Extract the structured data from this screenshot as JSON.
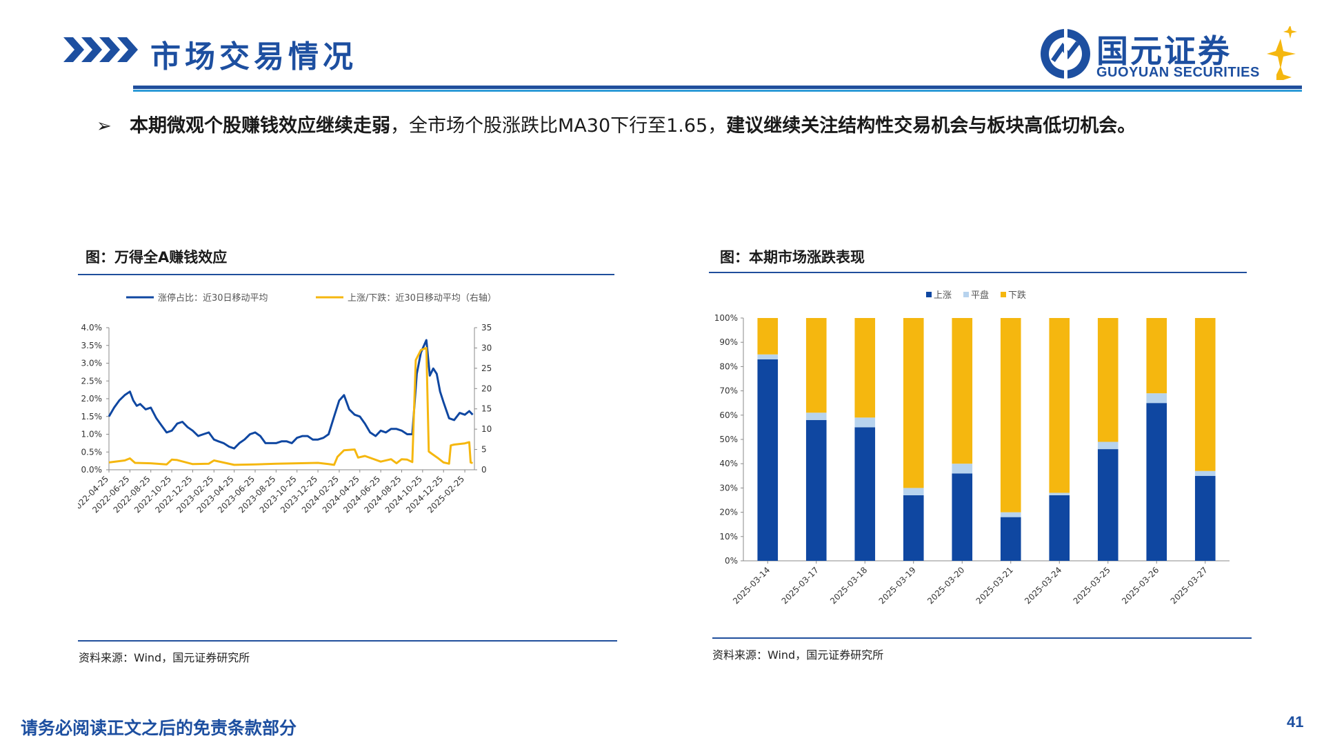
{
  "header": {
    "title": "市场交易情况",
    "logo_cn": "国元证券",
    "logo_en": "GUOYUAN SECURITIES"
  },
  "bullet": {
    "bold_1": "本期微观个股赚钱效应继续走弱",
    "normal": "，全市场个股涨跌比MA30下行至1.65，",
    "bold_2": "建议继续关注结构性交易机会与板块高低切机会。"
  },
  "left_figure": {
    "title": "图：万得全A赚钱效应",
    "source": "资料来源：Wind，国元证券研究所"
  },
  "right_figure": {
    "title": "图：本期市场涨跌表现",
    "source": "资料来源：Wind，国元证券研究所"
  },
  "footer": {
    "note": "请务必阅读正文之后的免责条款部分",
    "page": "41"
  },
  "colors": {
    "brand_blue": "#1d4fa0",
    "series_blue": "#0f47a1",
    "series_gold": "#f5b70f",
    "flat_light_blue": "#b7d3ee"
  },
  "chart_data": [
    {
      "type": "line",
      "x_tick_labels": [
        "2022-04-25",
        "2022-06-25",
        "2022-08-25",
        "2022-10-25",
        "2022-12-25",
        "2023-02-25",
        "2023-04-25",
        "2023-06-25",
        "2023-08-25",
        "2023-10-25",
        "2023-12-25",
        "2024-02-25",
        "2024-04-25",
        "2024-06-25",
        "2024-08-25",
        "2024-10-25",
        "2024-12-25",
        "2025-02-25"
      ],
      "y_left_ticks": [
        "0.0%",
        "0.5%",
        "1.0%",
        "1.5%",
        "2.0%",
        "2.5%",
        "3.0%",
        "3.5%",
        "4.0%"
      ],
      "y_left_lim": [
        0,
        4.0
      ],
      "y_right_ticks": [
        "0",
        "5",
        "10",
        "15",
        "20",
        "25",
        "30",
        "35"
      ],
      "y_right_lim": [
        0,
        35
      ],
      "legend_position": "top",
      "series": [
        {
          "name": "涨停占比：近30日移动平均",
          "axis": "left",
          "color": "#0f47a1",
          "x": [
            "2022-04-25",
            "2022-05-10",
            "2022-05-25",
            "2022-06-10",
            "2022-06-25",
            "2022-07-05",
            "2022-07-15",
            "2022-07-25",
            "2022-08-10",
            "2022-08-25",
            "2022-09-10",
            "2022-09-25",
            "2022-10-10",
            "2022-10-25",
            "2022-11-10",
            "2022-11-25",
            "2022-12-10",
            "2022-12-25",
            "2023-01-10",
            "2023-01-25",
            "2023-02-10",
            "2023-02-25",
            "2023-03-10",
            "2023-03-25",
            "2023-04-10",
            "2023-04-25",
            "2023-05-10",
            "2023-05-25",
            "2023-06-10",
            "2023-06-25",
            "2023-07-10",
            "2023-07-25",
            "2023-08-10",
            "2023-08-25",
            "2023-09-10",
            "2023-09-25",
            "2023-10-10",
            "2023-10-25",
            "2023-11-10",
            "2023-11-25",
            "2023-12-10",
            "2023-12-25",
            "2024-01-10",
            "2024-01-25",
            "2024-02-10",
            "2024-02-25",
            "2024-03-10",
            "2024-03-25",
            "2024-04-10",
            "2024-04-25",
            "2024-05-10",
            "2024-05-25",
            "2024-06-10",
            "2024-06-25",
            "2024-07-10",
            "2024-07-25",
            "2024-08-10",
            "2024-08-25",
            "2024-09-10",
            "2024-09-25",
            "2024-10-08",
            "2024-10-20",
            "2024-11-05",
            "2024-11-15",
            "2024-11-25",
            "2024-12-05",
            "2024-12-15",
            "2024-12-25",
            "2025-01-10",
            "2025-01-25",
            "2025-02-10",
            "2025-02-25",
            "2025-03-10",
            "2025-03-20"
          ],
          "values": [
            1.5,
            1.75,
            1.95,
            2.1,
            2.2,
            1.95,
            1.8,
            1.85,
            1.7,
            1.75,
            1.45,
            1.25,
            1.05,
            1.1,
            1.3,
            1.35,
            1.2,
            1.1,
            0.95,
            1.0,
            1.05,
            0.85,
            0.8,
            0.75,
            0.65,
            0.6,
            0.75,
            0.85,
            1.0,
            1.05,
            0.95,
            0.75,
            0.75,
            0.75,
            0.8,
            0.8,
            0.75,
            0.9,
            0.95,
            0.95,
            0.85,
            0.85,
            0.9,
            1.0,
            1.5,
            1.95,
            2.1,
            1.7,
            1.55,
            1.5,
            1.3,
            1.05,
            0.95,
            1.1,
            1.05,
            1.15,
            1.15,
            1.1,
            1.0,
            1.0,
            2.7,
            3.3,
            3.65,
            2.65,
            2.85,
            2.7,
            2.2,
            1.9,
            1.45,
            1.4,
            1.6,
            1.55,
            1.65,
            1.55
          ]
        },
        {
          "name": "上涨/下跌：近30日移动平均（右轴）",
          "axis": "right",
          "color": "#f5b70f",
          "x": [
            "2022-04-25",
            "2022-06-10",
            "2022-06-25",
            "2022-07-10",
            "2022-08-25",
            "2022-10-10",
            "2022-10-25",
            "2022-11-10",
            "2022-12-25",
            "2023-02-10",
            "2023-02-25",
            "2023-04-25",
            "2023-06-25",
            "2023-08-25",
            "2023-10-25",
            "2023-12-25",
            "2024-01-25",
            "2024-02-10",
            "2024-02-20",
            "2024-03-10",
            "2024-04-10",
            "2024-04-20",
            "2024-05-10",
            "2024-06-25",
            "2024-07-25",
            "2024-08-10",
            "2024-08-25",
            "2024-09-10",
            "2024-09-25",
            "2024-10-05",
            "2024-10-20",
            "2024-11-05",
            "2024-11-12",
            "2024-11-20",
            "2024-12-10",
            "2024-12-25",
            "2025-01-10",
            "2025-01-15",
            "2025-01-25",
            "2025-02-25",
            "2025-03-10",
            "2025-03-14",
            "2025-03-20"
          ],
          "values": [
            1.8,
            2.3,
            2.8,
            1.7,
            1.6,
            1.3,
            2.5,
            2.4,
            1.4,
            1.5,
            2.3,
            1.2,
            1.3,
            1.5,
            1.6,
            1.7,
            1.4,
            1.2,
            3.2,
            4.8,
            5.0,
            3.0,
            3.4,
            2.0,
            2.6,
            1.6,
            2.6,
            2.5,
            1.9,
            27.0,
            29.5,
            30.0,
            4.5,
            4.0,
            2.8,
            1.8,
            1.5,
            6.0,
            6.2,
            6.5,
            6.8,
            1.8,
            1.65
          ]
        }
      ]
    },
    {
      "type": "bar",
      "stacked": true,
      "categories": [
        "2025-03-14",
        "2025-03-17",
        "2025-03-18",
        "2025-03-19",
        "2025-03-20",
        "2025-03-21",
        "2025-03-24",
        "2025-03-25",
        "2025-03-26",
        "2025-03-27"
      ],
      "y_ticks": [
        "0%",
        "10%",
        "20%",
        "30%",
        "40%",
        "50%",
        "60%",
        "70%",
        "80%",
        "90%",
        "100%"
      ],
      "ylim": [
        0,
        100
      ],
      "legend_position": "top",
      "series": [
        {
          "name": "上涨",
          "color": "#0f47a1",
          "values": [
            83,
            58,
            55,
            27,
            36,
            18,
            27,
            46,
            65,
            35
          ]
        },
        {
          "name": "平盘",
          "color": "#b7d3ee",
          "values": [
            2,
            3,
            4,
            3,
            4,
            2,
            1,
            3,
            4,
            2
          ]
        },
        {
          "name": "下跌",
          "color": "#f5b70f",
          "values": [
            15,
            39,
            41,
            70,
            60,
            80,
            72,
            51,
            31,
            63
          ]
        }
      ]
    }
  ]
}
